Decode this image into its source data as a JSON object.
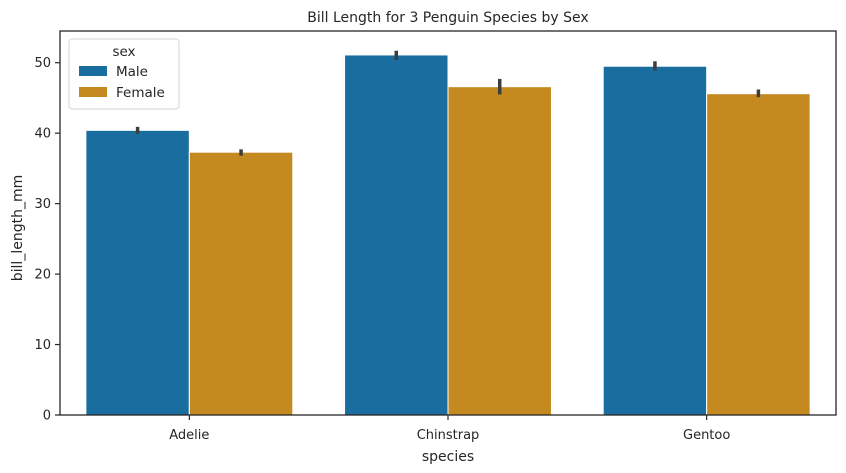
{
  "chart_data": {
    "type": "bar",
    "title": "Bill Length for 3 Penguin Species by Sex",
    "xlabel": "species",
    "ylabel": "bill_length_mm",
    "categories": [
      "Adelie",
      "Chinstrap",
      "Gentoo"
    ],
    "series": [
      {
        "name": "Male",
        "color": "#1a6e9f",
        "values": [
          40.4,
          51.1,
          49.5
        ],
        "ci_low": [
          39.9,
          50.4,
          48.9
        ],
        "ci_high": [
          40.9,
          51.7,
          50.2
        ]
      },
      {
        "name": "Female",
        "color": "#c4891f",
        "values": [
          37.3,
          46.6,
          45.6
        ],
        "ci_low": [
          36.8,
          45.5,
          45.1
        ],
        "ci_high": [
          37.7,
          47.7,
          46.2
        ]
      }
    ],
    "ylim": [
      0,
      54.5
    ],
    "yticks": [
      0,
      10,
      20,
      30,
      40,
      50
    ],
    "grid": false,
    "legend": {
      "title": "sex",
      "position": "top-left"
    }
  }
}
